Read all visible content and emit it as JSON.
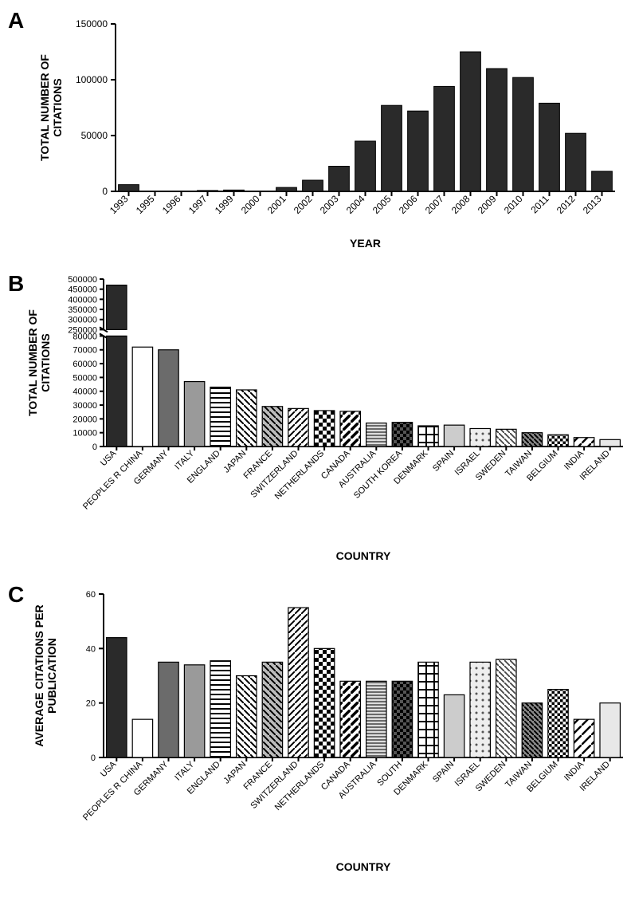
{
  "panelA": {
    "label": "A",
    "type": "bar",
    "title": "",
    "xlabel": "YEAR",
    "ylabel": "TOTAL NUMBER OF CITATIONS",
    "label_fontsize": 12,
    "axis_fontsize": 14,
    "xtick_fontsize": 12,
    "ytick_fontsize": 12,
    "categories": [
      "1993",
      "1995",
      "1996",
      "1997",
      "1999",
      "2000",
      "2001",
      "2002",
      "2003",
      "2004",
      "2005",
      "2006",
      "2007",
      "2008",
      "2009",
      "2010",
      "2011",
      "2012",
      "2013"
    ],
    "values": [
      6000,
      200,
      200,
      800,
      1200,
      200,
      3500,
      10000,
      22500,
      45000,
      77000,
      72000,
      94000,
      125000,
      110000,
      102000,
      79000,
      52000,
      18000
    ],
    "ylim": [
      0,
      150000
    ],
    "yticks": [
      0,
      50000,
      100000,
      150000
    ],
    "bar_color": "#2a2a2a",
    "background_color": "#ffffff",
    "axis_color": "#000000",
    "bar_width": 0.78
  },
  "panelB": {
    "label": "B",
    "type": "bar",
    "title": "",
    "xlabel": "COUNTRY",
    "ylabel": "TOTAL NUMBER OF CITATIONS",
    "label_fontsize": 12,
    "axis_fontsize": 14,
    "xtick_fontsize": 11,
    "ytick_fontsize": 11,
    "categories": [
      "USA",
      "PEOPLES R CHINA",
      "GERMANY",
      "ITALY",
      "ENGLAND",
      "JAPAN",
      "FRANCE",
      "SWITZERLAND",
      "NETHERLANDS",
      "CANADA",
      "AUSTRALIA",
      "SOUTH KOREA",
      "DENMARK",
      "SPAIN",
      "ISRAEL",
      "SWEDEN",
      "TAIWAN",
      "BELGIUM",
      "INDIA",
      "IRELAND"
    ],
    "values": [
      470000,
      72000,
      70000,
      47000,
      43000,
      41000,
      29000,
      27500,
      26000,
      25500,
      17000,
      17500,
      15000,
      15500,
      13000,
      12500,
      10000,
      8500,
      6500,
      5000
    ],
    "axis_break": true,
    "ylim_lower": [
      0,
      80000
    ],
    "ylim_upper": [
      250000,
      500000
    ],
    "yticks_lower": [
      0,
      10000,
      20000,
      30000,
      40000,
      50000,
      60000,
      70000,
      80000
    ],
    "yticks_upper": [
      250000,
      300000,
      350000,
      400000,
      450000,
      500000
    ],
    "patterns": [
      "solid-black",
      "solid-white",
      "solid-darkgray",
      "solid-gray",
      "horiz-lines",
      "diag-white",
      "diag-gray",
      "diag-cross",
      "checker",
      "diag-thick",
      "horiz-thin",
      "black-checker",
      "plaid",
      "solid-lightgray",
      "dots",
      "diag-light2",
      "diag-dense",
      "checker-small",
      "diag-wide",
      "solid-whitegray"
    ],
    "background_color": "#ffffff",
    "axis_color": "#000000",
    "bar_width": 0.78
  },
  "panelC": {
    "label": "C",
    "type": "bar",
    "title": "",
    "xlabel": "COUNTRY",
    "ylabel": "AVERAGE CITATIONS PER PUBLICATION",
    "label_fontsize": 12,
    "axis_fontsize": 14,
    "xtick_fontsize": 11,
    "ytick_fontsize": 11,
    "categories": [
      "USA",
      "PEOPLES R CHINA",
      "GERMANY",
      "ITALY",
      "ENGLAND",
      "JAPAN",
      "FRANCE",
      "SWITZERLAND",
      "NETHERLANDS",
      "CANADA",
      "AUSTRALIA",
      "SOUTH",
      "DENMARK",
      "SPAIN",
      "ISRAEL",
      "SWEDEN",
      "TAIWAN",
      "BELGIUM",
      "INDIA",
      "IRELAND"
    ],
    "values": [
      44,
      14,
      35,
      34,
      35.5,
      30,
      35,
      55,
      40,
      28,
      28,
      28,
      35,
      23,
      35,
      36,
      20,
      25,
      14,
      20
    ],
    "ylim": [
      0,
      60
    ],
    "yticks": [
      0,
      20,
      40,
      60
    ],
    "patterns": [
      "solid-black",
      "solid-white",
      "solid-darkgray",
      "solid-gray",
      "horiz-lines",
      "diag-white",
      "diag-gray",
      "diag-cross",
      "checker",
      "diag-thick",
      "horiz-thin",
      "black-checker",
      "plaid",
      "solid-lightgray",
      "dots",
      "diag-light2",
      "diag-dense",
      "checker-small",
      "diag-wide",
      "solid-whitegray"
    ],
    "background_color": "#ffffff",
    "axis_color": "#000000",
    "bar_width": 0.78
  }
}
